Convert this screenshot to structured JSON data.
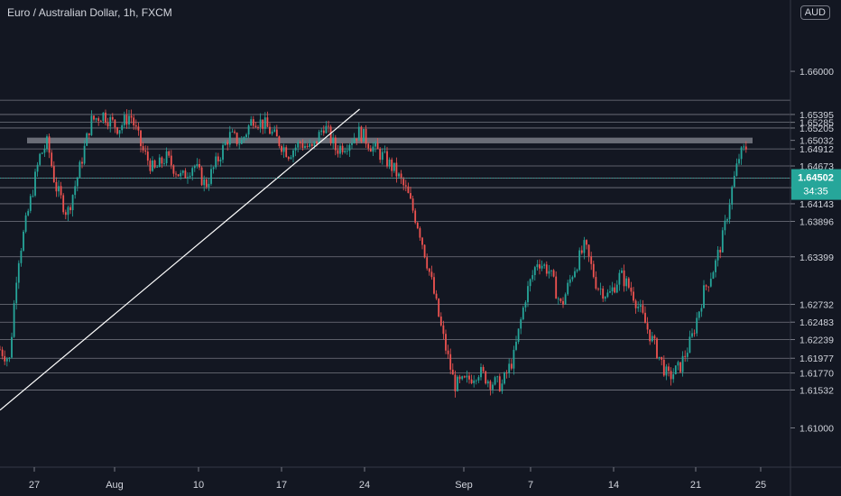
{
  "header": {
    "symbol_title": "Euro / Australian Dollar, 1h, FXCM",
    "currency_badge": "AUD"
  },
  "price_tag": {
    "value": "1.64502",
    "countdown": "34:35",
    "color": "#26a69a"
  },
  "colors": {
    "background": "#131722",
    "up": "#26a69a",
    "down": "#ef5350",
    "level_line": "#9598a1",
    "trendline": "#ffffff",
    "resistance_zone": "#b2b5be"
  },
  "chart_data": {
    "type": "candlestick",
    "title": "",
    "xlabel": "",
    "ylabel": "",
    "ylim": [
      1.6045,
      1.67
    ],
    "x_ticks": [
      "27",
      "Aug",
      "10",
      "17",
      "24",
      "Sep",
      "7",
      "14",
      "21",
      "25"
    ],
    "y_ticks": [
      1.65595,
      1.65395,
      1.65285,
      1.65205,
      1.65032,
      1.64912,
      1.64673,
      1.64502,
      1.64369,
      1.64143,
      1.63896,
      1.63399,
      1.62732,
      1.62483,
      1.62239,
      1.61977,
      1.6177,
      1.61532,
      1.61,
      1.605,
      1.66
    ],
    "axis_labels": [
      "1.66000",
      "1.65395",
      "1.65285",
      "1.65205",
      "1.65032",
      "1.64912",
      "1.64673",
      "1.64369",
      "1.64143",
      "1.63896",
      "1.63399",
      "1.62732",
      "1.62483",
      "1.62239",
      "1.61977",
      "1.61770",
      "1.61532",
      "1.61000"
    ],
    "horizontal_levels": [
      1.65595,
      1.65395,
      1.65285,
      1.65205,
      1.64912,
      1.64673,
      1.64502,
      1.64369,
      1.64143,
      1.63896,
      1.63399,
      1.62732,
      1.62483,
      1.62239,
      1.61977,
      1.6177,
      1.61532
    ],
    "resistance_zone": [
      1.6499,
      1.6507
    ],
    "trendline": {
      "from": [
        0,
        1.6125
      ],
      "to": [
        0.455,
        1.6547
      ]
    },
    "price_path": [
      [
        0.0,
        1.621
      ],
      [
        0.012,
        1.6195
      ],
      [
        0.022,
        1.633
      ],
      [
        0.035,
        1.64
      ],
      [
        0.05,
        1.648
      ],
      [
        0.06,
        1.65
      ],
      [
        0.07,
        1.644
      ],
      [
        0.085,
        1.64
      ],
      [
        0.1,
        1.646
      ],
      [
        0.115,
        1.653
      ],
      [
        0.13,
        1.654
      ],
      [
        0.15,
        1.652
      ],
      [
        0.165,
        1.654
      ],
      [
        0.18,
        1.649
      ],
      [
        0.195,
        1.646
      ],
      [
        0.21,
        1.648
      ],
      [
        0.23,
        1.645
      ],
      [
        0.245,
        1.647
      ],
      [
        0.26,
        1.644
      ],
      [
        0.275,
        1.6475
      ],
      [
        0.29,
        1.651
      ],
      [
        0.305,
        1.65
      ],
      [
        0.32,
        1.6535
      ],
      [
        0.335,
        1.6525
      ],
      [
        0.35,
        1.6505
      ],
      [
        0.365,
        1.6485
      ],
      [
        0.38,
        1.65
      ],
      [
        0.395,
        1.649
      ],
      [
        0.41,
        1.6525
      ],
      [
        0.425,
        1.649
      ],
      [
        0.44,
        1.65
      ],
      [
        0.455,
        1.6515
      ],
      [
        0.47,
        1.6495
      ],
      [
        0.485,
        1.648
      ],
      [
        0.5,
        1.646
      ],
      [
        0.515,
        1.643
      ],
      [
        0.53,
        1.638
      ],
      [
        0.545,
        1.631
      ],
      [
        0.56,
        1.623
      ],
      [
        0.575,
        1.616
      ],
      [
        0.59,
        1.6165
      ],
      [
        0.605,
        1.618
      ],
      [
        0.62,
        1.6165
      ],
      [
        0.635,
        1.616
      ],
      [
        0.65,
        1.62
      ],
      [
        0.665,
        1.6285
      ],
      [
        0.68,
        1.6335
      ],
      [
        0.695,
        1.632
      ],
      [
        0.71,
        1.627
      ],
      [
        0.725,
        1.632
      ],
      [
        0.74,
        1.6355
      ],
      [
        0.755,
        1.63
      ],
      [
        0.77,
        1.6285
      ],
      [
        0.785,
        1.6315
      ],
      [
        0.8,
        1.629
      ],
      [
        0.815,
        1.625
      ],
      [
        0.83,
        1.621
      ],
      [
        0.845,
        1.617
      ],
      [
        0.86,
        1.6185
      ],
      [
        0.875,
        1.6225
      ],
      [
        0.89,
        1.629
      ],
      [
        0.905,
        1.633
      ],
      [
        0.915,
        1.637
      ],
      [
        0.925,
        1.643
      ],
      [
        0.935,
        1.648
      ],
      [
        0.945,
        1.6495
      ]
    ],
    "grid": false
  }
}
